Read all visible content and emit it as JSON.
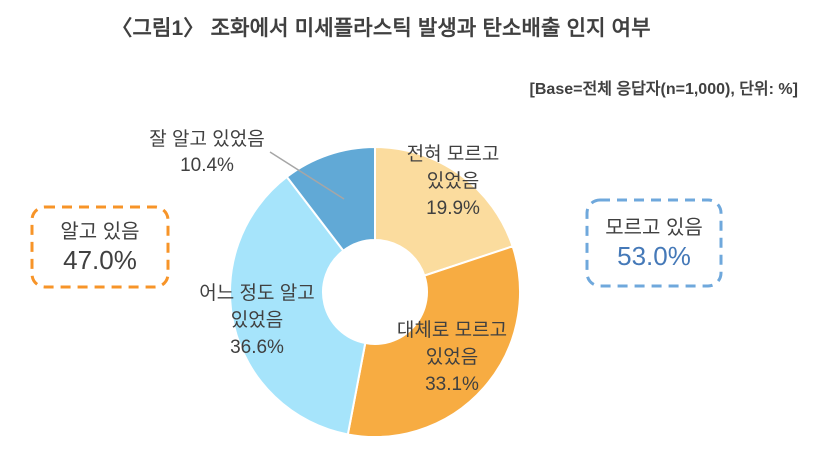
{
  "figure": {
    "title": "〈그림1〉 조화에서 미세플라스틱 발생과 탄소배출 인지 여부",
    "base_note": "[Base=전체 응답자(n=1,000), 단위: %]"
  },
  "summary": {
    "know": {
      "label": "알고 있음",
      "value": "47.0%"
    },
    "dont_know": {
      "label": "모르고 있음",
      "value": "53.0%"
    }
  },
  "colors": {
    "text": "#404040",
    "know_box_border": "#F79428",
    "dont_know_box_border": "#6FA8DC",
    "dont_know_value_text": "#4579B8",
    "callout_line": "#A6A6A6",
    "slice_separator": "#FFFFFF"
  },
  "chart_data": {
    "type": "pie",
    "donut": true,
    "inner_radius_ratio": 0.36,
    "start_angle_deg": 0,
    "direction": "clockwise",
    "unit": "%",
    "slices": [
      {
        "label": "전혀 모르고 있었음",
        "label_lines": [
          "전혀 모르고",
          "있었음"
        ],
        "value": 19.9,
        "value_label": "19.9%",
        "color": "#FBDC9E"
      },
      {
        "label": "대체로 모르고 있었음",
        "label_lines": [
          "대체로 모르고",
          "있었음"
        ],
        "value": 33.1,
        "value_label": "33.1%",
        "color": "#F7AC42"
      },
      {
        "label": "어느 정도 알고 있었음",
        "label_lines": [
          "어느 정도 알고",
          "있었음"
        ],
        "value": 36.6,
        "value_label": "36.6%",
        "color": "#A6E4FB"
      },
      {
        "label": "잘 알고 있었음",
        "label_lines": [
          "잘 알고 있었음"
        ],
        "value": 10.4,
        "value_label": "10.4%",
        "color": "#61A9D6"
      }
    ]
  }
}
